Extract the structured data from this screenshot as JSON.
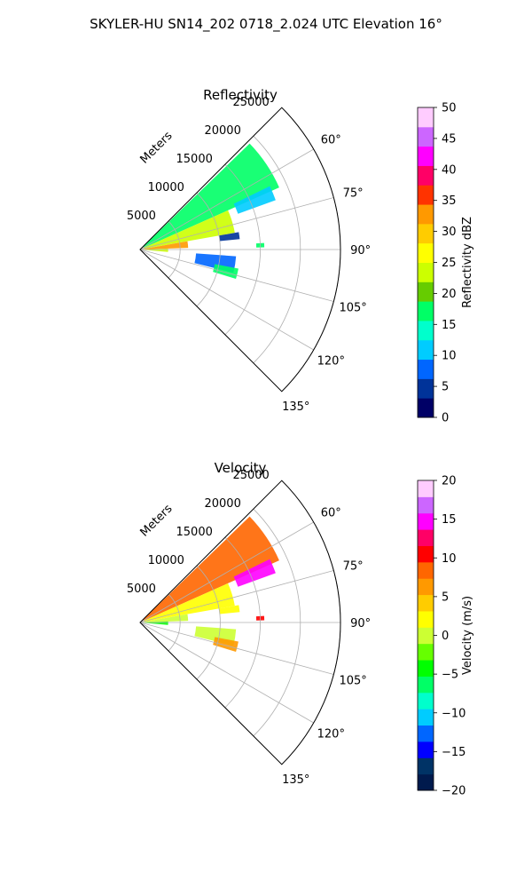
{
  "title": "SKYLER-HU  SN14_202  0718_2.024 UTC Elevation 16°",
  "chart_data": [
    {
      "type": "heatmap",
      "projection": "polar-sector",
      "title": "Reflectivity",
      "range_axis_label": "Meters",
      "range_ticks": [
        5000,
        10000,
        15000,
        20000,
        25000
      ],
      "range_tick_labels": [
        "5000",
        "10000",
        "15000",
        "20000",
        "25000"
      ],
      "range_limit": [
        0,
        25000
      ],
      "azimuth_ticks": [
        60,
        75,
        90,
        105,
        120,
        135
      ],
      "azimuth_tick_labels": [
        "60°",
        "75°",
        "90°",
        "105°",
        "120°",
        "135°"
      ],
      "azimuth_limit": [
        45,
        135
      ],
      "grid": true,
      "colorbar": {
        "label": "Reflectivity dBZ",
        "limits": [
          0,
          50
        ],
        "ticks": [
          0,
          5,
          10,
          15,
          20,
          25,
          30,
          35,
          40,
          45,
          50
        ],
        "tick_labels": [
          "0",
          "5",
          "10",
          "15",
          "20",
          "25",
          "30",
          "35",
          "40",
          "45",
          "50"
        ],
        "colors": [
          "#000066",
          "#003399",
          "#0066ff",
          "#00ccff",
          "#00ffcc",
          "#00ff66",
          "#66cc00",
          "#ccff00",
          "#ffff00",
          "#ffcc00",
          "#ff9900",
          "#ff3300",
          "#ff0066",
          "#ff00ff",
          "#cc66ff",
          "#ffccff"
        ]
      },
      "echo_regions": [
        {
          "az_start": 46,
          "az_end": 66,
          "range_start": 500,
          "range_end": 19000,
          "value": 18
        },
        {
          "az_start": 66,
          "az_end": 80,
          "range_start": 500,
          "range_end": 12000,
          "value": 24
        },
        {
          "az_start": 80,
          "az_end": 88,
          "range_start": 500,
          "range_end": 6000,
          "value": 32
        },
        {
          "az_start": 88,
          "az_end": 95,
          "range_start": 500,
          "range_end": 3500,
          "value": 22
        },
        {
          "az_start": 64,
          "az_end": 70,
          "range_start": 13000,
          "range_end": 18000,
          "value": 12
        },
        {
          "az_start": 80,
          "az_end": 84,
          "range_start": 10000,
          "range_end": 12500,
          "value": 4
        },
        {
          "az_start": 87,
          "az_end": 89,
          "range_start": 14500,
          "range_end": 15500,
          "value": 16
        },
        {
          "az_start": 94,
          "az_end": 104,
          "range_start": 7000,
          "range_end": 12000,
          "value": 8
        },
        {
          "az_start": 101,
          "az_end": 107,
          "range_start": 9500,
          "range_end": 12500,
          "value": 18
        }
      ]
    },
    {
      "type": "heatmap",
      "projection": "polar-sector",
      "title": "Velocity",
      "range_axis_label": "Meters",
      "range_ticks": [
        5000,
        10000,
        15000,
        20000,
        25000
      ],
      "range_tick_labels": [
        "5000",
        "10000",
        "15000",
        "20000",
        "25000"
      ],
      "range_limit": [
        0,
        25000
      ],
      "azimuth_ticks": [
        60,
        75,
        90,
        105,
        120,
        135
      ],
      "azimuth_tick_labels": [
        "60°",
        "75°",
        "90°",
        "105°",
        "120°",
        "135°"
      ],
      "azimuth_limit": [
        45,
        135
      ],
      "grid": true,
      "colorbar": {
        "label": "Velocity (m/s)",
        "limits": [
          -20,
          20
        ],
        "ticks": [
          -20,
          -15,
          -10,
          -5,
          0,
          5,
          10,
          15,
          20
        ],
        "tick_labels": [
          "−20",
          "−15",
          "−10",
          "−5",
          "0",
          "5",
          "10",
          "15",
          "20"
        ],
        "colors": [
          "#001a4d",
          "#003366",
          "#0000ff",
          "#0066ff",
          "#00ccff",
          "#00ffcc",
          "#00ff66",
          "#00ff00",
          "#66ff00",
          "#ccff33",
          "#ffff00",
          "#ffcc00",
          "#ff9900",
          "#ff6600",
          "#ff0000",
          "#ff0066",
          "#ff00ff",
          "#cc66ff",
          "#ffccff"
        ]
      },
      "echo_regions": [
        {
          "az_start": 46,
          "az_end": 66,
          "range_start": 500,
          "range_end": 19000,
          "value": 9
        },
        {
          "az_start": 66,
          "az_end": 80,
          "range_start": 500,
          "range_end": 12000,
          "value": 3
        },
        {
          "az_start": 80,
          "az_end": 88,
          "range_start": 500,
          "range_end": 6000,
          "value": 0
        },
        {
          "az_start": 88,
          "az_end": 95,
          "range_start": 500,
          "range_end": 3500,
          "value": -5
        },
        {
          "az_start": 64,
          "az_end": 70,
          "range_start": 13000,
          "range_end": 18000,
          "value": 15
        },
        {
          "az_start": 80,
          "az_end": 84,
          "range_start": 10000,
          "range_end": 12500,
          "value": 2
        },
        {
          "az_start": 87,
          "az_end": 89,
          "range_start": 14500,
          "range_end": 15500,
          "value": 10
        },
        {
          "az_start": 94,
          "az_end": 104,
          "range_start": 7000,
          "range_end": 12000,
          "value": 1
        },
        {
          "az_start": 101,
          "az_end": 107,
          "range_start": 9500,
          "range_end": 12500,
          "value": 7
        }
      ]
    }
  ]
}
